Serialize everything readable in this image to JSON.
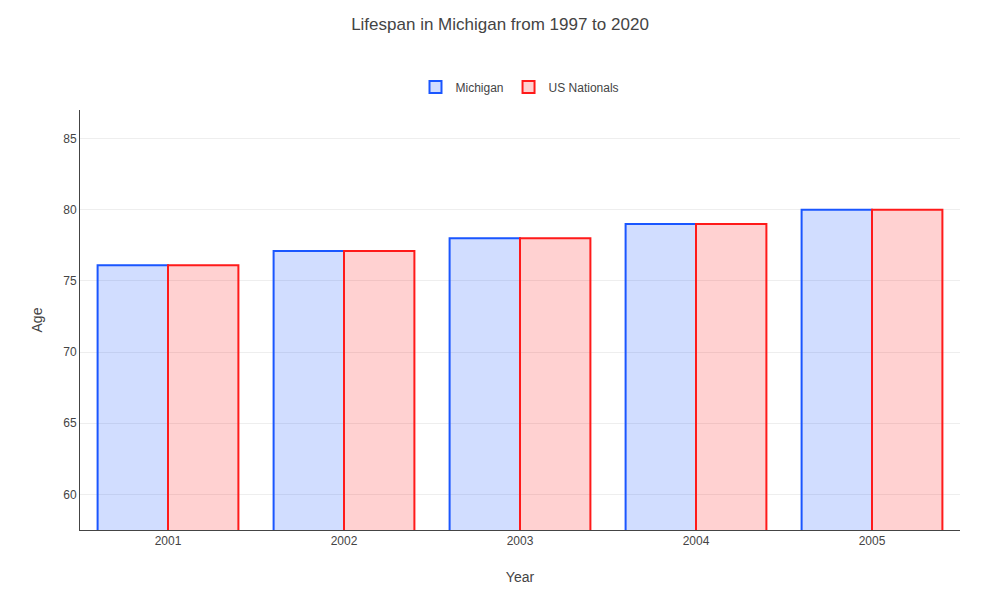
{
  "chart_data": {
    "type": "bar",
    "title": "Lifespan in Michigan from 1997 to 2020",
    "xlabel": "Year",
    "ylabel": "Age",
    "categories": [
      "2001",
      "2002",
      "2003",
      "2004",
      "2005"
    ],
    "series": [
      {
        "name": "Michigan",
        "color": "#1a56ff",
        "values": [
          76.1,
          77.1,
          78.0,
          79.0,
          80.0
        ]
      },
      {
        "name": "US Nationals",
        "color": "#ff1a1a",
        "values": [
          76.1,
          77.1,
          78.0,
          79.0,
          80.0
        ]
      }
    ],
    "ylim": [
      57.5,
      87
    ],
    "yticks": [
      60,
      65,
      70,
      75,
      80,
      85
    ],
    "grid": true,
    "legend": "top"
  }
}
